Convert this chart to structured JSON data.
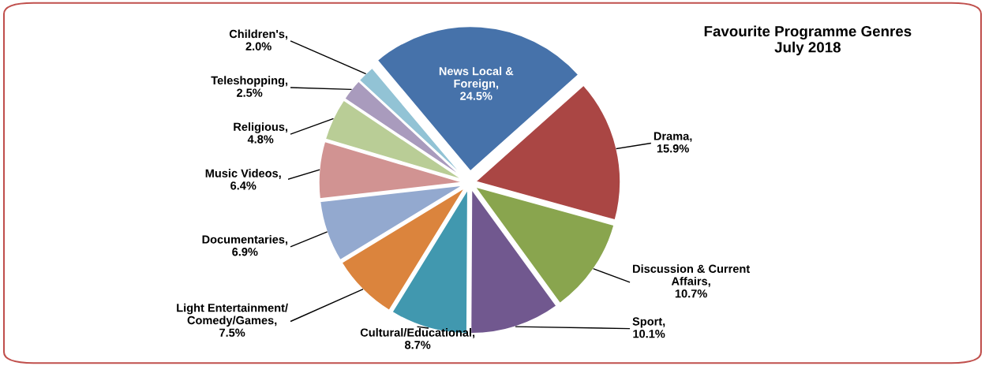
{
  "chart_data": {
    "type": "pie",
    "title": "Favourite Programme Genres\nJuly 2018",
    "categories": [
      "News Local &\nForeign",
      "Drama",
      "Discussion & Current\nAffairs",
      "Sport",
      "Cultural/Educational",
      "Light Entertainment/\nComedy/Games",
      "Documentaries",
      "Music Videos",
      "Religious",
      "Teleshopping",
      "Children's"
    ],
    "values": [
      24.5,
      15.9,
      10.7,
      10.1,
      8.7,
      7.5,
      6.9,
      6.4,
      4.8,
      2.5,
      2.0
    ],
    "value_labels": [
      ",\n24.5%",
      ",\n15.9%",
      ",\n10.7%",
      ",\n10.1%",
      ",\n8.7%",
      ",\n7.5%",
      ",\n6.9%",
      ",\n6.4%",
      ",\n4.8%",
      ",\n2.5%",
      ",\n2.0%"
    ],
    "colors": [
      "#4672aa",
      "#aa4644",
      "#89a54e",
      "#71588f",
      "#4198af",
      "#db843d",
      "#93a9cf",
      "#d19392",
      "#b9cd96",
      "#a99bbd",
      "#92c3d5"
    ],
    "legend": false
  }
}
